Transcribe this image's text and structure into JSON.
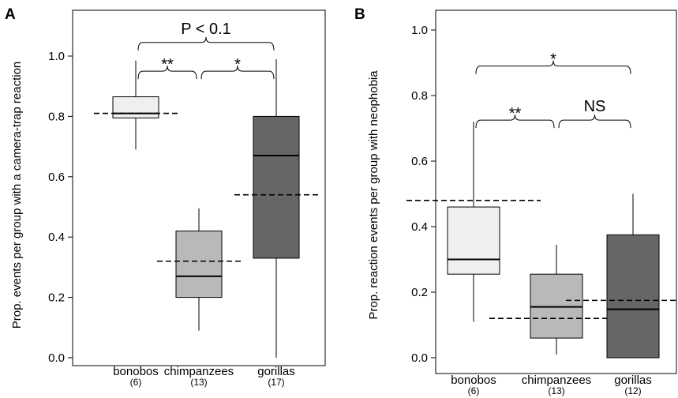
{
  "chart_data": [
    {
      "panel": "A",
      "type": "box",
      "ylabel": "Prop. events per group with a camera-trap reaction",
      "ylim": [
        0,
        1.1
      ],
      "yticks": [
        "0.0",
        "0.2",
        "0.4",
        "0.6",
        "0.8",
        "1.0"
      ],
      "grid": false,
      "categories": [
        {
          "name": "bonobos",
          "n": "(6)",
          "color": "#efefef",
          "min": 0.69,
          "q1": 0.795,
          "median": 0.81,
          "q3": 0.865,
          "max": 0.985,
          "mean": 0.81
        },
        {
          "name": "chimpanzees",
          "n": "(13)",
          "color": "#b9b9b9",
          "min": 0.09,
          "q1": 0.2,
          "median": 0.27,
          "q3": 0.42,
          "max": 0.495,
          "mean": 0.32
        },
        {
          "name": "gorillas",
          "n": "(17)",
          "color": "#666666",
          "min": 0.0,
          "q1": 0.33,
          "median": 0.67,
          "q3": 0.8,
          "max": 0.99,
          "mean": 0.54
        }
      ],
      "brackets": [
        {
          "from": 0,
          "to": 1,
          "y": 0.95,
          "label": "**"
        },
        {
          "from": 1,
          "to": 2,
          "y": 0.95,
          "label": "*"
        },
        {
          "from": 0,
          "to": 2,
          "y": 1.045,
          "label": "P < 0.1"
        }
      ]
    },
    {
      "panel": "B",
      "type": "box",
      "ylabel": "Prop. reaction events per group with neophobia",
      "ylim": [
        0,
        1.02
      ],
      "yticks": [
        "0.0",
        "0.2",
        "0.4",
        "0.6",
        "0.8",
        "1.0"
      ],
      "grid": false,
      "categories": [
        {
          "name": "bonobos",
          "n": "(6)",
          "color": "#efefef",
          "min": 0.11,
          "q1": 0.255,
          "median": 0.3,
          "q3": 0.46,
          "max": 0.72,
          "mean": 0.48
        },
        {
          "name": "chimpanzees",
          "n": "(13)",
          "color": "#b9b9b9",
          "min": 0.01,
          "q1": 0.06,
          "median": 0.155,
          "q3": 0.255,
          "max": 0.345,
          "mean": 0.12
        },
        {
          "name": "gorillas",
          "n": "(12)",
          "color": "#666666",
          "min": 0.0,
          "q1": 0.0,
          "median": 0.148,
          "q3": 0.375,
          "max": 0.5,
          "mean": 0.175
        }
      ],
      "brackets": [
        {
          "from": 0,
          "to": 1,
          "y": 0.725,
          "label": "**"
        },
        {
          "from": 1,
          "to": 2,
          "y": 0.725,
          "label": "NS"
        },
        {
          "from": 0,
          "to": 2,
          "y": 0.89,
          "label": "*"
        }
      ]
    }
  ]
}
